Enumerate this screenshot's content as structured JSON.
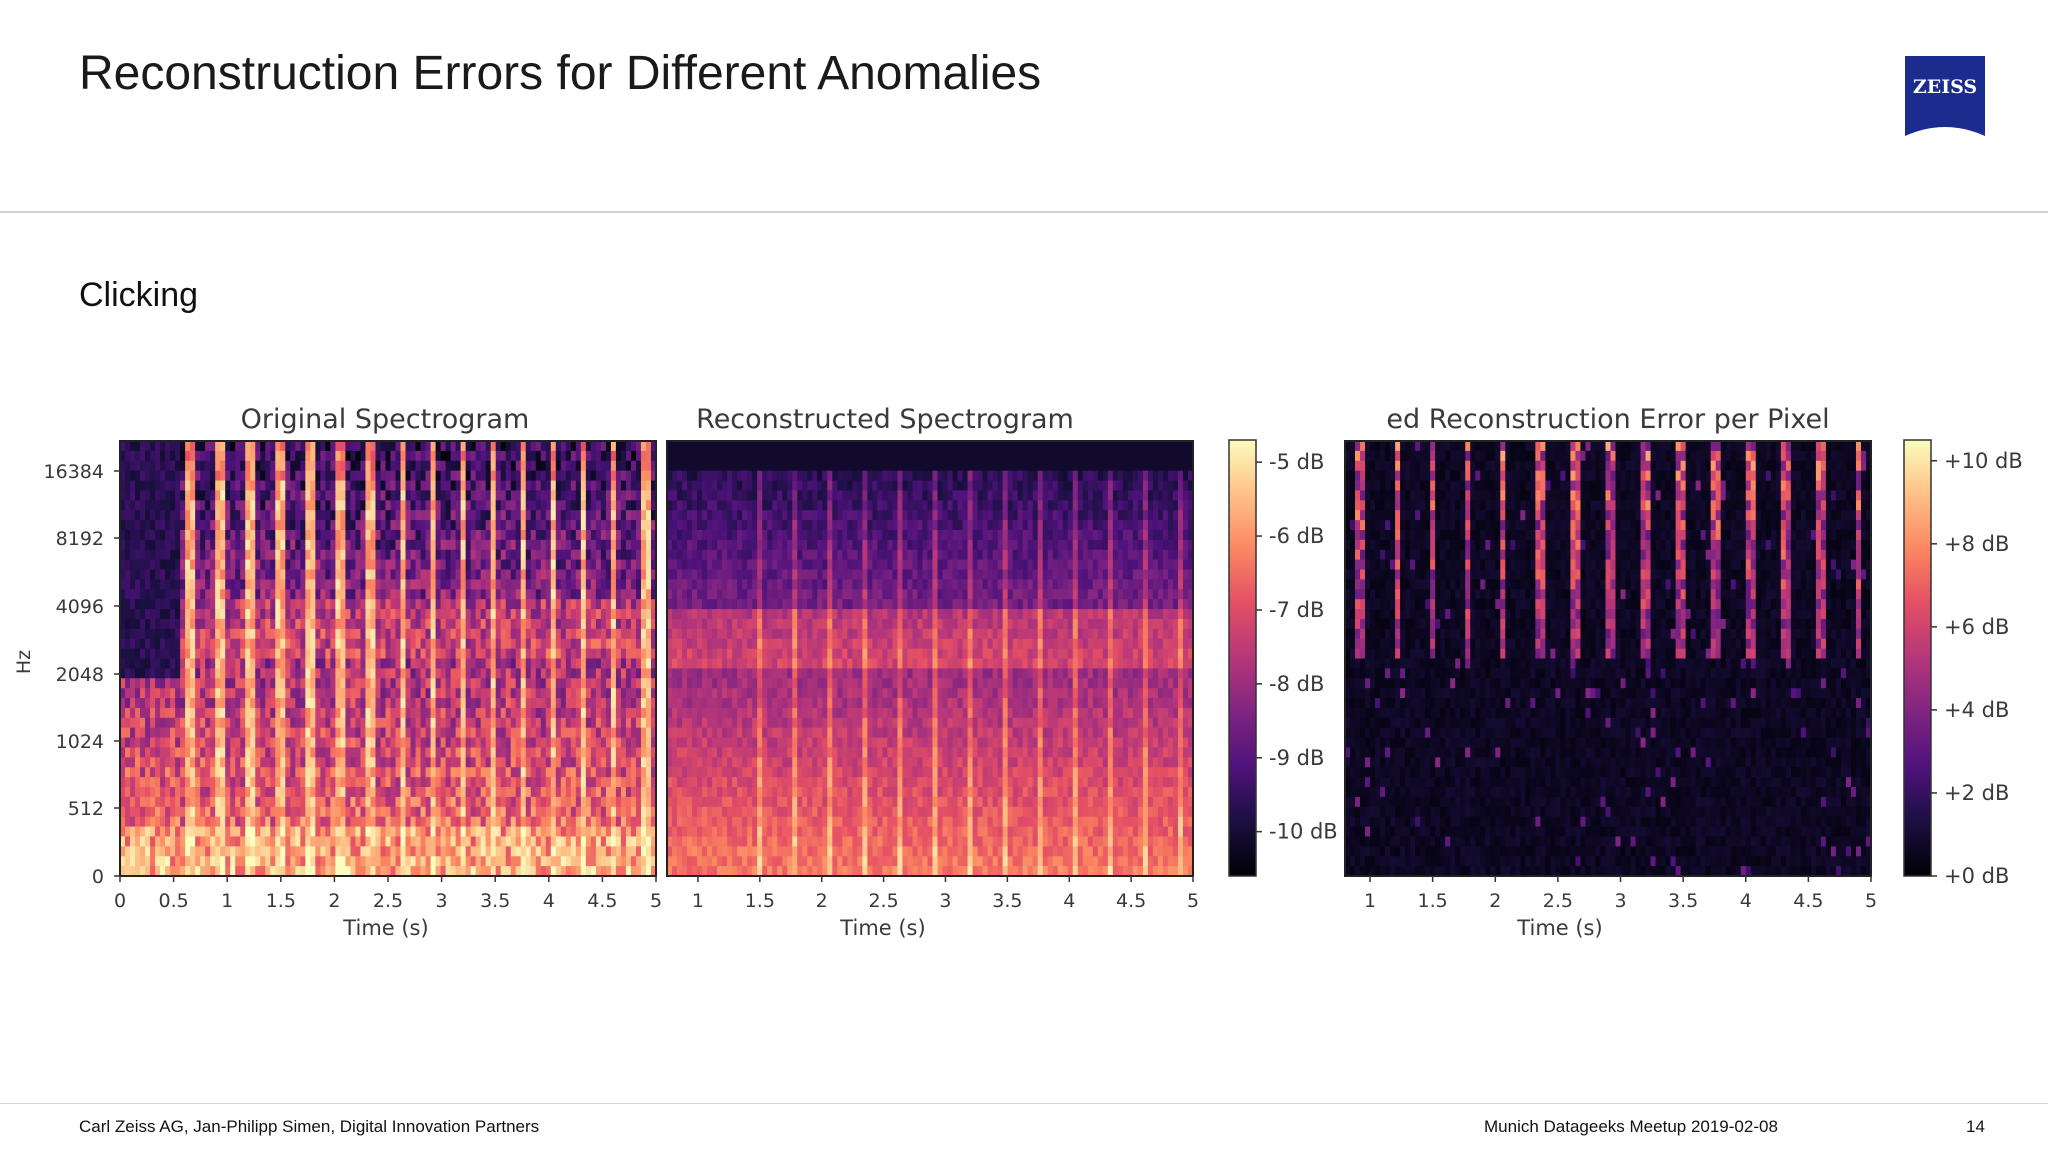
{
  "slide": {
    "title": "Reconstruction Errors for Different Anomalies",
    "subtitle": "Clicking",
    "logo_text": "ZEISS",
    "brand_color": "#1b2b8e"
  },
  "footer": {
    "left": "Carl Zeiss AG, Jan-Philipp Simen, Digital Innovation Partners",
    "center": "Munich Datageeks Meetup 2019-02-08",
    "page": "14"
  },
  "chart_data": [
    {
      "type": "heatmap",
      "title": "Original Spectrogram",
      "xlabel": "Time (s)",
      "ylabel": "Hz",
      "x_ticks": [
        "0",
        "0.5",
        "1",
        "1.5",
        "2",
        "2.5",
        "3",
        "3.5",
        "4",
        "4.5",
        "5"
      ],
      "y_ticks": [
        "0",
        "512",
        "1024",
        "2048",
        "4096",
        "8192",
        "16384"
      ],
      "xlim": [
        0,
        5
      ],
      "colormap": "magma"
    },
    {
      "type": "heatmap",
      "title": "Reconstructed Spectrogram",
      "xlabel": "Time (s)",
      "x_ticks": [
        "1",
        "1.5",
        "2",
        "2.5",
        "3",
        "3.5",
        "4",
        "4.5",
        "5"
      ],
      "xlim": [
        0.75,
        5
      ],
      "colormap": "magma",
      "colorbar": {
        "ticks": [
          "-5 dB",
          "-6 dB",
          "-7 dB",
          "-8 dB",
          "-9 dB",
          "-10 dB"
        ],
        "values": [
          -5,
          -6,
          -7,
          -8,
          -9,
          -10
        ],
        "range": [
          -10.6,
          -4.7
        ]
      }
    },
    {
      "type": "heatmap",
      "title": "ed Reconstruction Error per Pixel",
      "xlabel": "Time (s)",
      "x_ticks": [
        "1",
        "1.5",
        "2",
        "2.5",
        "3",
        "3.5",
        "4",
        "4.5",
        "5"
      ],
      "xlim": [
        0.8,
        5
      ],
      "colormap": "magma",
      "colorbar": {
        "ticks": [
          "+10 dB",
          "+8 dB",
          "+6 dB",
          "+4 dB",
          "+2 dB",
          "+0 dB"
        ],
        "values": [
          10,
          8,
          6,
          4,
          2,
          0
        ],
        "range": [
          0,
          10.5
        ]
      }
    }
  ]
}
